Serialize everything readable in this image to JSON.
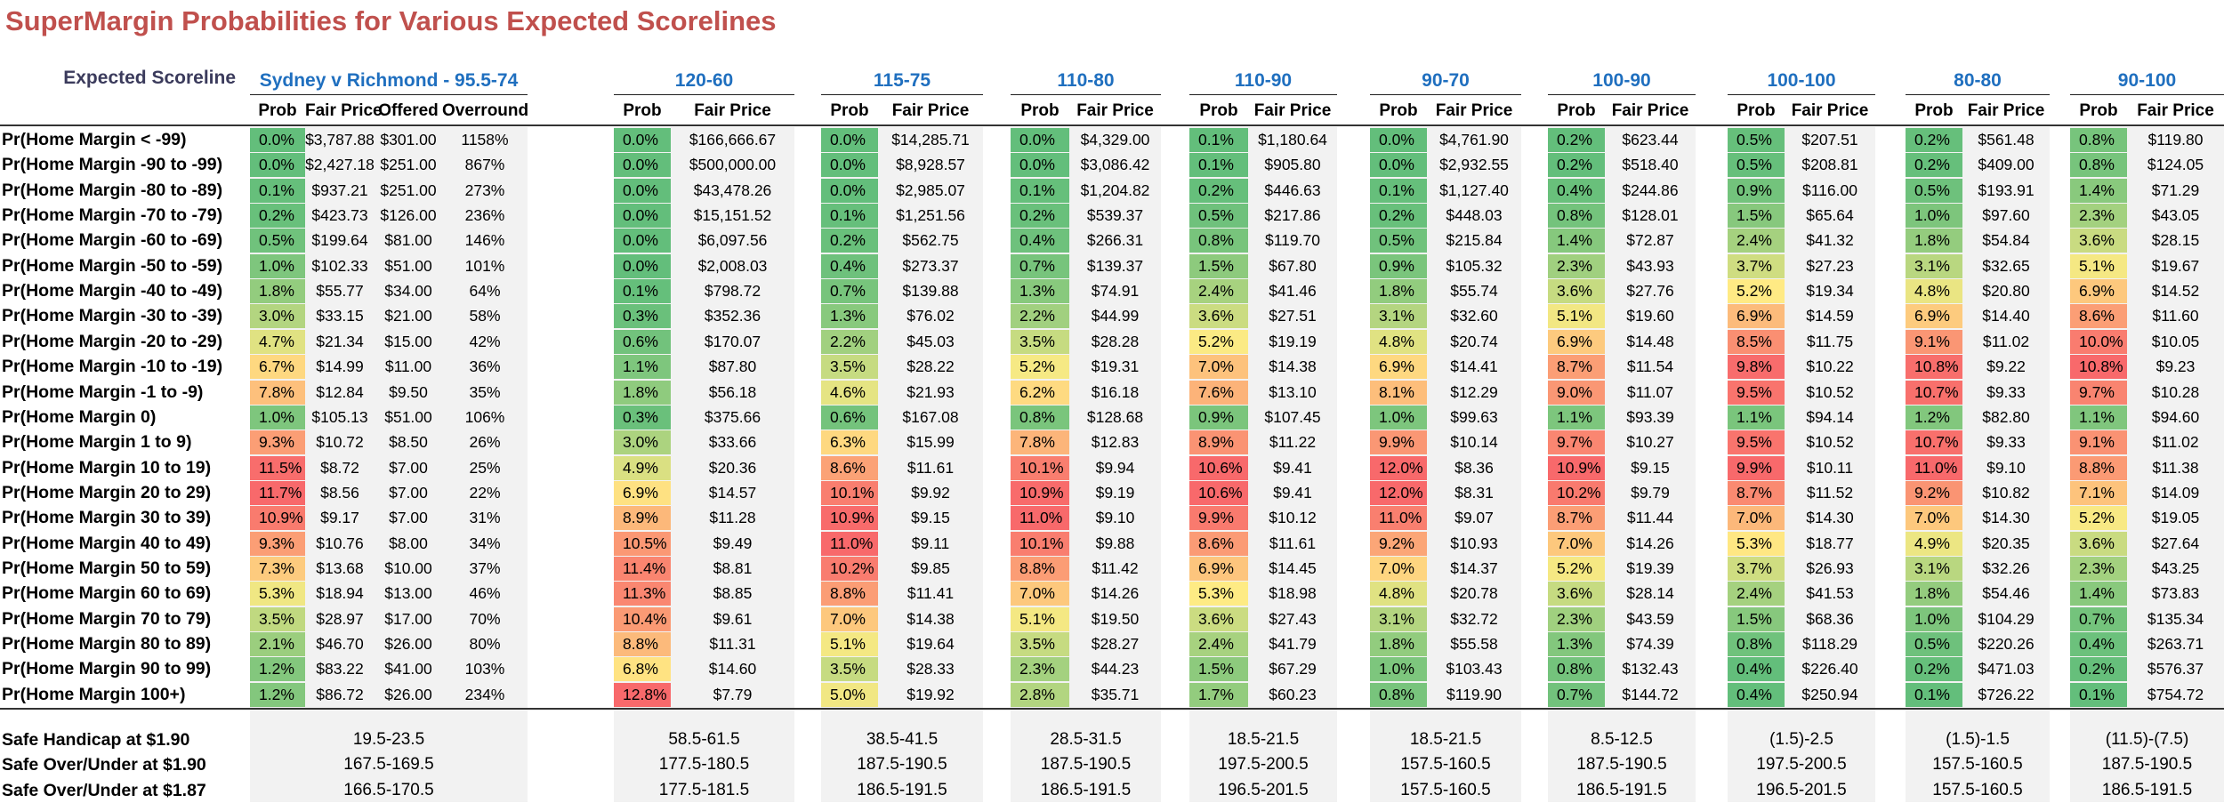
{
  "title": "SuperMargin Probabilities for Various Expected Scorelines",
  "expected_label": "Expected Scoreline",
  "col_labels": {
    "prob": "Prob",
    "fair": "Fair Price",
    "offered": "Offered",
    "overround": "Overround"
  },
  "row_labels": [
    "Pr(Home Margin < -99)",
    "Pr(Home Margin -90 to -99)",
    "Pr(Home Margin -80 to -89)",
    "Pr(Home Margin -70 to -79)",
    "Pr(Home Margin -60 to -69)",
    "Pr(Home Margin -50 to -59)",
    "Pr(Home Margin -40 to -49)",
    "Pr(Home Margin -30 to -39)",
    "Pr(Home Margin -20 to -29)",
    "Pr(Home Margin -10 to -19)",
    "Pr(Home Margin -1 to -9)",
    "Pr(Home Margin 0)",
    "Pr(Home Margin 1 to 9)",
    "Pr(Home Margin 10 to 19)",
    "Pr(Home Margin 20 to 29)",
    "Pr(Home Margin 30 to 39)",
    "Pr(Home Margin 40 to 49)",
    "Pr(Home Margin 50 to 59)",
    "Pr(Home Margin 60 to 69)",
    "Pr(Home Margin 70 to 79)",
    "Pr(Home Margin 80 to 89)",
    "Pr(Home Margin 90 to 99)",
    "Pr(Home Margin 100+)"
  ],
  "footer_labels": [
    "Safe Handicap at $1.90",
    "Safe Over/Under at $1.90",
    "Safe Over/Under at $1.87"
  ],
  "scenarios": [
    {
      "name": "Sydney v Richmond - 95.5-74",
      "prob": [
        "0.0%",
        "0.0%",
        "0.1%",
        "0.2%",
        "0.5%",
        "1.0%",
        "1.8%",
        "3.0%",
        "4.7%",
        "6.7%",
        "7.8%",
        "1.0%",
        "9.3%",
        "11.5%",
        "11.7%",
        "10.9%",
        "9.3%",
        "7.3%",
        "5.3%",
        "3.5%",
        "2.1%",
        "1.2%",
        "1.2%"
      ],
      "fair": [
        "$3,787.88",
        "$2,427.18",
        "$937.21",
        "$423.73",
        "$199.64",
        "$102.33",
        "$55.77",
        "$33.15",
        "$21.34",
        "$14.99",
        "$12.84",
        "$105.13",
        "$10.72",
        "$8.72",
        "$8.56",
        "$9.17",
        "$10.76",
        "$13.68",
        "$18.94",
        "$28.97",
        "$46.70",
        "$83.22",
        "$86.72"
      ],
      "offered": [
        "$301.00",
        "$251.00",
        "$251.00",
        "$126.00",
        "$81.00",
        "$51.00",
        "$34.00",
        "$21.00",
        "$15.00",
        "$11.00",
        "$9.50",
        "$51.00",
        "$8.50",
        "$7.00",
        "$7.00",
        "$7.00",
        "$8.00",
        "$10.00",
        "$13.00",
        "$17.00",
        "$26.00",
        "$41.00",
        "$26.00"
      ],
      "overround": [
        "1158%",
        "867%",
        "273%",
        "236%",
        "146%",
        "101%",
        "64%",
        "58%",
        "42%",
        "36%",
        "35%",
        "106%",
        "26%",
        "25%",
        "22%",
        "31%",
        "34%",
        "37%",
        "46%",
        "70%",
        "80%",
        "103%",
        "234%"
      ],
      "footer": [
        "19.5-23.5",
        "167.5-169.5",
        "166.5-170.5"
      ]
    },
    {
      "name": "120-60",
      "prob": [
        "0.0%",
        "0.0%",
        "0.0%",
        "0.0%",
        "0.0%",
        "0.0%",
        "0.1%",
        "0.3%",
        "0.6%",
        "1.1%",
        "1.8%",
        "0.3%",
        "3.0%",
        "4.9%",
        "6.9%",
        "8.9%",
        "10.5%",
        "11.4%",
        "11.3%",
        "10.4%",
        "8.8%",
        "6.8%",
        "12.8%"
      ],
      "fair": [
        "$166,666.67",
        "$500,000.00",
        "$43,478.26",
        "$15,151.52",
        "$6,097.56",
        "$2,008.03",
        "$798.72",
        "$352.36",
        "$170.07",
        "$87.80",
        "$56.18",
        "$375.66",
        "$33.66",
        "$20.36",
        "$14.57",
        "$11.28",
        "$9.49",
        "$8.81",
        "$8.85",
        "$9.61",
        "$11.31",
        "$14.60",
        "$7.79"
      ],
      "footer": [
        "58.5-61.5",
        "177.5-180.5",
        "177.5-181.5"
      ]
    },
    {
      "name": "115-75",
      "prob": [
        "0.0%",
        "0.0%",
        "0.0%",
        "0.1%",
        "0.2%",
        "0.4%",
        "0.7%",
        "1.3%",
        "2.2%",
        "3.5%",
        "4.6%",
        "0.6%",
        "6.3%",
        "8.6%",
        "10.1%",
        "10.9%",
        "11.0%",
        "10.2%",
        "8.8%",
        "7.0%",
        "5.1%",
        "3.5%",
        "5.0%"
      ],
      "fair": [
        "$14,285.71",
        "$8,928.57",
        "$2,985.07",
        "$1,251.56",
        "$562.75",
        "$273.37",
        "$139.88",
        "$76.02",
        "$45.03",
        "$28.22",
        "$21.93",
        "$167.08",
        "$15.99",
        "$11.61",
        "$9.92",
        "$9.15",
        "$9.11",
        "$9.85",
        "$11.41",
        "$14.38",
        "$19.64",
        "$28.33",
        "$19.92"
      ],
      "footer": [
        "38.5-41.5",
        "187.5-190.5",
        "186.5-191.5"
      ]
    },
    {
      "name": "110-80",
      "prob": [
        "0.0%",
        "0.0%",
        "0.1%",
        "0.2%",
        "0.4%",
        "0.7%",
        "1.3%",
        "2.2%",
        "3.5%",
        "5.2%",
        "6.2%",
        "0.8%",
        "7.8%",
        "10.1%",
        "10.9%",
        "11.0%",
        "10.1%",
        "8.8%",
        "7.0%",
        "5.1%",
        "3.5%",
        "2.3%",
        "2.8%"
      ],
      "fair": [
        "$4,329.00",
        "$3,086.42",
        "$1,204.82",
        "$539.37",
        "$266.31",
        "$139.37",
        "$74.91",
        "$44.99",
        "$28.28",
        "$19.31",
        "$16.18",
        "$128.68",
        "$12.83",
        "$9.94",
        "$9.19",
        "$9.10",
        "$9.88",
        "$11.42",
        "$14.26",
        "$19.50",
        "$28.27",
        "$44.23",
        "$35.71"
      ],
      "footer": [
        "28.5-31.5",
        "187.5-190.5",
        "186.5-191.5"
      ]
    },
    {
      "name": "110-90",
      "prob": [
        "0.1%",
        "0.1%",
        "0.2%",
        "0.5%",
        "0.8%",
        "1.5%",
        "2.4%",
        "3.6%",
        "5.2%",
        "7.0%",
        "7.6%",
        "0.9%",
        "8.9%",
        "10.6%",
        "10.6%",
        "9.9%",
        "8.6%",
        "6.9%",
        "5.3%",
        "3.6%",
        "2.4%",
        "1.5%",
        "1.7%"
      ],
      "fair": [
        "$1,180.64",
        "$905.80",
        "$446.63",
        "$217.86",
        "$119.70",
        "$67.80",
        "$41.46",
        "$27.51",
        "$19.19",
        "$14.38",
        "$13.10",
        "$107.45",
        "$11.22",
        "$9.41",
        "$9.41",
        "$10.12",
        "$11.61",
        "$14.45",
        "$18.98",
        "$27.43",
        "$41.79",
        "$67.29",
        "$60.23"
      ],
      "footer": [
        "18.5-21.5",
        "197.5-200.5",
        "196.5-201.5"
      ]
    },
    {
      "name": "90-70",
      "prob": [
        "0.0%",
        "0.0%",
        "0.1%",
        "0.2%",
        "0.5%",
        "0.9%",
        "1.8%",
        "3.1%",
        "4.8%",
        "6.9%",
        "8.1%",
        "1.0%",
        "9.9%",
        "12.0%",
        "12.0%",
        "11.0%",
        "9.2%",
        "7.0%",
        "4.8%",
        "3.1%",
        "1.8%",
        "1.0%",
        "0.8%"
      ],
      "fair": [
        "$4,761.90",
        "$2,932.55",
        "$1,127.40",
        "$448.03",
        "$215.84",
        "$105.32",
        "$55.74",
        "$32.60",
        "$20.74",
        "$14.41",
        "$12.29",
        "$99.63",
        "$10.14",
        "$8.36",
        "$8.31",
        "$9.07",
        "$10.93",
        "$14.37",
        "$20.78",
        "$32.72",
        "$55.58",
        "$103.43",
        "$119.90"
      ],
      "footer": [
        "18.5-21.5",
        "157.5-160.5",
        "157.5-160.5"
      ]
    },
    {
      "name": "100-90",
      "prob": [
        "0.2%",
        "0.2%",
        "0.4%",
        "0.8%",
        "1.4%",
        "2.3%",
        "3.6%",
        "5.1%",
        "6.9%",
        "8.7%",
        "9.0%",
        "1.1%",
        "9.7%",
        "10.9%",
        "10.2%",
        "8.7%",
        "7.0%",
        "5.2%",
        "3.6%",
        "2.3%",
        "1.3%",
        "0.8%",
        "0.7%"
      ],
      "fair": [
        "$623.44",
        "$518.40",
        "$244.86",
        "$128.01",
        "$72.87",
        "$43.93",
        "$27.76",
        "$19.60",
        "$14.48",
        "$11.54",
        "$11.07",
        "$93.39",
        "$10.27",
        "$9.15",
        "$9.79",
        "$11.44",
        "$14.26",
        "$19.39",
        "$28.14",
        "$43.59",
        "$74.39",
        "$132.43",
        "$144.72"
      ],
      "footer": [
        "8.5-12.5",
        "187.5-190.5",
        "186.5-191.5"
      ]
    },
    {
      "name": "100-100",
      "prob": [
        "0.5%",
        "0.5%",
        "0.9%",
        "1.5%",
        "2.4%",
        "3.7%",
        "5.2%",
        "6.9%",
        "8.5%",
        "9.8%",
        "9.5%",
        "1.1%",
        "9.5%",
        "9.9%",
        "8.7%",
        "7.0%",
        "5.3%",
        "3.7%",
        "2.4%",
        "1.5%",
        "0.8%",
        "0.4%",
        "0.4%"
      ],
      "fair": [
        "$207.51",
        "$208.81",
        "$116.00",
        "$65.64",
        "$41.32",
        "$27.23",
        "$19.34",
        "$14.59",
        "$11.75",
        "$10.22",
        "$10.52",
        "$94.14",
        "$10.52",
        "$10.11",
        "$11.52",
        "$14.30",
        "$18.77",
        "$26.93",
        "$41.53",
        "$68.36",
        "$118.29",
        "$226.40",
        "$250.94"
      ],
      "footer": [
        "(1.5)-2.5",
        "197.5-200.5",
        "196.5-201.5"
      ]
    },
    {
      "name": "80-80",
      "prob": [
        "0.2%",
        "0.2%",
        "0.5%",
        "1.0%",
        "1.8%",
        "3.1%",
        "4.8%",
        "6.9%",
        "9.1%",
        "10.8%",
        "10.7%",
        "1.2%",
        "10.7%",
        "11.0%",
        "9.2%",
        "7.0%",
        "4.9%",
        "3.1%",
        "1.8%",
        "1.0%",
        "0.5%",
        "0.2%",
        "0.1%"
      ],
      "fair": [
        "$561.48",
        "$409.00",
        "$193.91",
        "$97.60",
        "$54.84",
        "$32.65",
        "$20.80",
        "$14.40",
        "$11.02",
        "$9.22",
        "$9.33",
        "$82.80",
        "$9.33",
        "$9.10",
        "$10.82",
        "$14.30",
        "$20.35",
        "$32.26",
        "$54.46",
        "$104.29",
        "$220.26",
        "$471.03",
        "$726.22"
      ],
      "footer": [
        "(1.5)-1.5",
        "157.5-160.5",
        "157.5-160.5"
      ]
    },
    {
      "name": "90-100",
      "prob": [
        "0.8%",
        "0.8%",
        "1.4%",
        "2.3%",
        "3.6%",
        "5.1%",
        "6.9%",
        "8.6%",
        "10.0%",
        "10.8%",
        "9.7%",
        "1.1%",
        "9.1%",
        "8.8%",
        "7.1%",
        "5.2%",
        "3.6%",
        "2.3%",
        "1.4%",
        "0.7%",
        "0.4%",
        "0.2%",
        "0.1%"
      ],
      "fair": [
        "$119.80",
        "$124.05",
        "$71.29",
        "$43.05",
        "$28.15",
        "$19.67",
        "$14.52",
        "$11.60",
        "$10.05",
        "$9.23",
        "$10.28",
        "$94.60",
        "$11.02",
        "$11.38",
        "$14.09",
        "$19.05",
        "$27.64",
        "$43.25",
        "$73.83",
        "$135.34",
        "$263.71",
        "$576.37",
        "$754.72"
      ],
      "footer": [
        "(11.5)-(7.5)",
        "187.5-190.5",
        "186.5-191.5"
      ]
    }
  ],
  "colors": {
    "title": "#c0504d",
    "scenario_title": "#1f6fbf",
    "low": "#63be7b",
    "mid": "#ffeb84",
    "high": "#f8696b",
    "band": "#f2f2f2"
  }
}
